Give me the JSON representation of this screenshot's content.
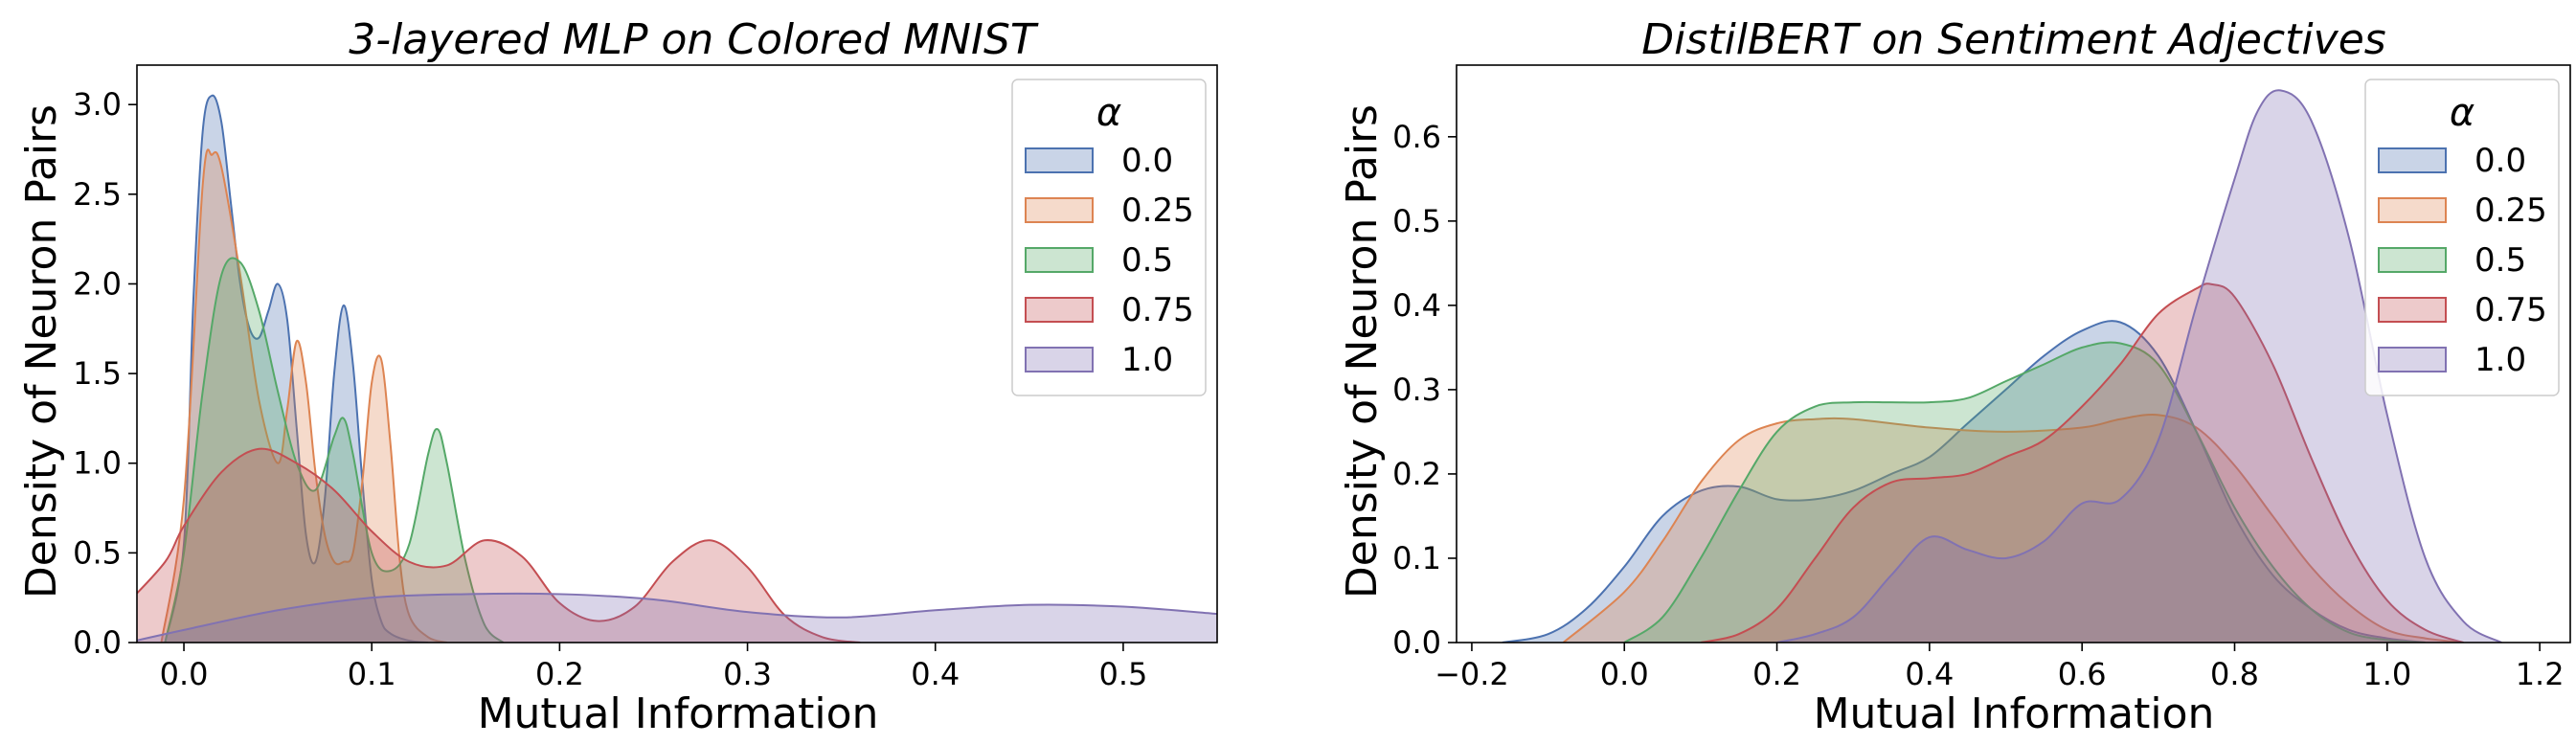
{
  "chart_data": [
    {
      "type": "area",
      "title": "3-layered MLP on Colored MNIST",
      "xlabel": "Mutual Information",
      "ylabel": "Density of Neuron Pairs",
      "xlim": [
        -0.025,
        0.55
      ],
      "ylim": [
        0,
        3.22
      ],
      "xticks": [
        0.0,
        0.1,
        0.2,
        0.3,
        0.4,
        0.5
      ],
      "yticks": [
        0.0,
        0.5,
        1.0,
        1.5,
        2.0,
        2.5,
        3.0
      ],
      "xtick_labels": [
        "0.0",
        "0.1",
        "0.2",
        "0.3",
        "0.4",
        "0.5"
      ],
      "ytick_labels": [
        "0.0",
        "0.5",
        "1.0",
        "1.5",
        "2.0",
        "2.5",
        "3.0"
      ],
      "grid": false,
      "legend": {
        "title": "α",
        "placement": "top-right"
      },
      "series": [
        {
          "name": "0.0",
          "color": "#4C72B0",
          "x": [
            -0.01,
            0.0,
            0.005,
            0.01,
            0.015,
            0.02,
            0.025,
            0.03,
            0.035,
            0.04,
            0.045,
            0.05,
            0.055,
            0.06,
            0.065,
            0.07,
            0.075,
            0.08,
            0.085,
            0.09,
            0.095,
            0.1,
            0.105,
            0.11,
            0.12,
            0.13
          ],
          "y": [
            0.0,
            0.55,
            1.9,
            2.85,
            3.05,
            2.9,
            2.45,
            2.0,
            1.75,
            1.7,
            1.85,
            2.0,
            1.8,
            1.2,
            0.6,
            0.45,
            0.8,
            1.5,
            1.88,
            1.55,
            0.9,
            0.35,
            0.12,
            0.05,
            0.01,
            0.0
          ]
        },
        {
          "name": "0.25",
          "color": "#DD8452",
          "x": [
            -0.012,
            0.0,
            0.01,
            0.015,
            0.02,
            0.03,
            0.04,
            0.05,
            0.055,
            0.06,
            0.065,
            0.07,
            0.075,
            0.08,
            0.085,
            0.09,
            0.095,
            0.1,
            0.105,
            0.11,
            0.115,
            0.12,
            0.13,
            0.14
          ],
          "y": [
            0.0,
            0.8,
            2.55,
            2.72,
            2.65,
            2.05,
            1.35,
            1.0,
            1.3,
            1.68,
            1.45,
            0.95,
            0.6,
            0.45,
            0.45,
            0.5,
            0.9,
            1.45,
            1.58,
            1.1,
            0.45,
            0.15,
            0.03,
            0.0
          ]
        },
        {
          "name": "0.5",
          "color": "#55A868",
          "x": [
            -0.01,
            0.0,
            0.01,
            0.02,
            0.03,
            0.04,
            0.05,
            0.06,
            0.07,
            0.08,
            0.085,
            0.09,
            0.1,
            0.11,
            0.12,
            0.13,
            0.135,
            0.14,
            0.15,
            0.16,
            0.17
          ],
          "y": [
            0.0,
            0.5,
            1.4,
            2.05,
            2.12,
            1.85,
            1.4,
            1.0,
            0.85,
            1.15,
            1.25,
            1.05,
            0.5,
            0.4,
            0.55,
            1.05,
            1.19,
            1.0,
            0.45,
            0.1,
            0.0
          ]
        },
        {
          "name": "0.75",
          "color": "#C44E52",
          "x": [
            -0.03,
            -0.01,
            0.0,
            0.02,
            0.04,
            0.06,
            0.08,
            0.1,
            0.12,
            0.14,
            0.16,
            0.18,
            0.2,
            0.22,
            0.24,
            0.26,
            0.28,
            0.3,
            0.32,
            0.34,
            0.36
          ],
          "y": [
            0.22,
            0.45,
            0.65,
            0.95,
            1.08,
            1.0,
            0.85,
            0.62,
            0.45,
            0.43,
            0.57,
            0.48,
            0.22,
            0.12,
            0.2,
            0.45,
            0.57,
            0.42,
            0.15,
            0.03,
            0.0
          ]
        },
        {
          "name": "1.0",
          "color": "#8172B2",
          "x": [
            -0.03,
            0.0,
            0.05,
            0.1,
            0.15,
            0.2,
            0.25,
            0.3,
            0.35,
            0.4,
            0.45,
            0.5,
            0.55
          ],
          "y": [
            0.0,
            0.07,
            0.18,
            0.25,
            0.27,
            0.27,
            0.24,
            0.17,
            0.14,
            0.18,
            0.21,
            0.2,
            0.16
          ]
        }
      ]
    },
    {
      "type": "area",
      "title": "DistilBERT on Sentiment Adjectives",
      "xlabel": "Mutual Information",
      "ylabel": "Density of Neuron Pairs",
      "xlim": [
        -0.22,
        1.24
      ],
      "ylim": [
        0,
        0.685
      ],
      "xticks": [
        -0.2,
        0.0,
        0.2,
        0.4,
        0.6,
        0.8,
        1.0,
        1.2
      ],
      "yticks": [
        0.0,
        0.1,
        0.2,
        0.3,
        0.4,
        0.5,
        0.6
      ],
      "xtick_labels": [
        "−0.2",
        "0.0",
        "0.2",
        "0.4",
        "0.6",
        "0.8",
        "1.0",
        "1.2"
      ],
      "ytick_labels": [
        "0.0",
        "0.1",
        "0.2",
        "0.3",
        "0.4",
        "0.5",
        "0.6"
      ],
      "grid": false,
      "legend": {
        "title": "α",
        "placement": "top-right"
      },
      "series": [
        {
          "name": "0.0",
          "color": "#4C72B0",
          "x": [
            -0.16,
            -0.1,
            -0.05,
            0.0,
            0.05,
            0.1,
            0.15,
            0.2,
            0.25,
            0.3,
            0.35,
            0.4,
            0.45,
            0.5,
            0.55,
            0.6,
            0.65,
            0.7,
            0.75,
            0.8,
            0.85,
            0.9,
            0.95,
            1.0,
            1.05
          ],
          "y": [
            0.0,
            0.01,
            0.04,
            0.09,
            0.15,
            0.18,
            0.185,
            0.17,
            0.17,
            0.18,
            0.2,
            0.22,
            0.26,
            0.3,
            0.34,
            0.37,
            0.38,
            0.34,
            0.25,
            0.15,
            0.08,
            0.04,
            0.015,
            0.005,
            0.0
          ]
        },
        {
          "name": "0.25",
          "color": "#DD8452",
          "x": [
            -0.08,
            0.0,
            0.05,
            0.1,
            0.15,
            0.2,
            0.25,
            0.3,
            0.4,
            0.5,
            0.6,
            0.65,
            0.7,
            0.75,
            0.8,
            0.85,
            0.9,
            0.95,
            1.0,
            1.05,
            1.1
          ],
          "y": [
            0.0,
            0.06,
            0.12,
            0.19,
            0.24,
            0.26,
            0.265,
            0.265,
            0.255,
            0.25,
            0.255,
            0.265,
            0.27,
            0.255,
            0.21,
            0.15,
            0.09,
            0.045,
            0.015,
            0.005,
            0.0
          ]
        },
        {
          "name": "0.5",
          "color": "#55A868",
          "x": [
            0.0,
            0.05,
            0.1,
            0.15,
            0.2,
            0.25,
            0.3,
            0.35,
            0.4,
            0.45,
            0.5,
            0.55,
            0.6,
            0.65,
            0.7,
            0.75,
            0.8,
            0.85,
            0.9,
            0.95,
            1.0,
            1.05
          ],
          "y": [
            0.0,
            0.03,
            0.1,
            0.18,
            0.25,
            0.28,
            0.285,
            0.285,
            0.285,
            0.29,
            0.31,
            0.33,
            0.35,
            0.355,
            0.33,
            0.25,
            0.16,
            0.09,
            0.04,
            0.012,
            0.003,
            0.0
          ]
        },
        {
          "name": "0.75",
          "color": "#C44E52",
          "x": [
            0.1,
            0.15,
            0.2,
            0.25,
            0.3,
            0.35,
            0.4,
            0.45,
            0.5,
            0.55,
            0.6,
            0.65,
            0.7,
            0.75,
            0.77,
            0.8,
            0.85,
            0.9,
            0.95,
            1.0,
            1.05,
            1.1
          ],
          "y": [
            0.0,
            0.01,
            0.04,
            0.1,
            0.16,
            0.19,
            0.195,
            0.2,
            0.22,
            0.24,
            0.28,
            0.33,
            0.39,
            0.42,
            0.425,
            0.41,
            0.33,
            0.22,
            0.12,
            0.05,
            0.015,
            0.0
          ]
        },
        {
          "name": "1.0",
          "color": "#8172B2",
          "x": [
            0.2,
            0.25,
            0.3,
            0.35,
            0.4,
            0.45,
            0.5,
            0.55,
            0.6,
            0.65,
            0.7,
            0.75,
            0.8,
            0.83,
            0.86,
            0.9,
            0.95,
            1.0,
            1.05,
            1.1,
            1.15
          ],
          "y": [
            0.0,
            0.01,
            0.03,
            0.08,
            0.125,
            0.11,
            0.1,
            0.12,
            0.165,
            0.17,
            0.24,
            0.4,
            0.55,
            0.63,
            0.655,
            0.62,
            0.48,
            0.27,
            0.1,
            0.025,
            0.0
          ]
        }
      ]
    }
  ]
}
